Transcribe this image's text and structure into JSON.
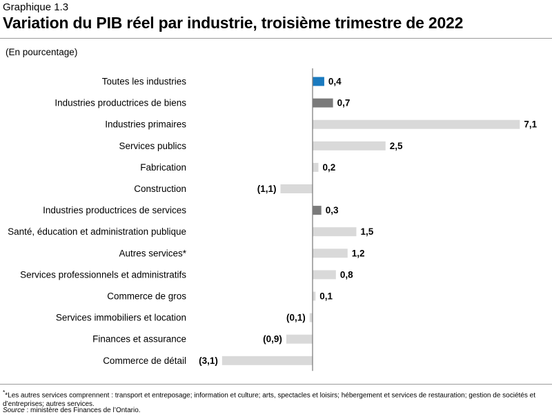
{
  "supertitle": "Graphique 1.3",
  "title": "Variation du PIB réel par industrie, troisième trimestre de 2022",
  "unit_label": "(En pourcentage)",
  "footnote": "*Les autres services comprennent : transport et entreposage; information et culture; arts, spectacles et loisirs; hébergement et services de restauration; gestion de sociétés et d’entreprises; autres services.",
  "footnote_marker": "*",
  "source_label": "Source",
  "source_text": " : ministère des Finances de l’Ontario.",
  "colors": {
    "total": "#1a7abf",
    "subtotal": "#7a7a7a",
    "detail": "#d9d9d9",
    "axis": "#7f7f7f"
  },
  "chart_data": {
    "type": "bar",
    "orientation": "horizontal",
    "title": "Variation du PIB réel par industrie, troisième trimestre de 2022",
    "xlabel": "",
    "ylabel": "(En pourcentage)",
    "xlim": [
      -4.2,
      7.3
    ],
    "grid": false,
    "categories": [
      "Toutes les industries",
      "Industries productrices de biens",
      "Industries primaires",
      "Services publics",
      "Fabrication",
      "Construction",
      "Industries productrices de services",
      "Santé, éducation et administration publique",
      "Autres services*",
      "Services professionnels et administratifs",
      "Commerce de gros",
      "Services immobiliers et location",
      "Finances et assurance",
      "Commerce de détail"
    ],
    "values": [
      0.4,
      0.7,
      7.1,
      2.5,
      0.2,
      -1.1,
      0.3,
      1.5,
      1.2,
      0.8,
      0.1,
      -0.1,
      -0.9,
      -3.1
    ],
    "value_labels": [
      "0,4",
      "0,7",
      "7,1",
      "2,5",
      "0,2",
      "(1,1)",
      "0,3",
      "1,5",
      "1,2",
      "0,8",
      "0,1",
      "(0,1)",
      "(0,9)",
      "(3,1)"
    ],
    "bar_kind": [
      "total",
      "subtotal",
      "detail",
      "detail",
      "detail",
      "detail",
      "subtotal",
      "detail",
      "detail",
      "detail",
      "detail",
      "detail",
      "detail",
      "detail"
    ]
  }
}
